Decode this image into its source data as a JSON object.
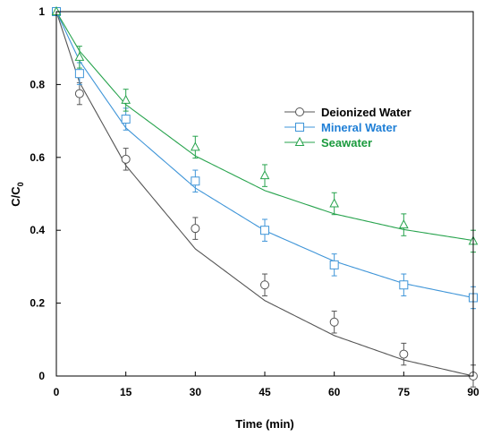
{
  "chart_data": {
    "type": "line",
    "xlabel": "Time (min)",
    "ylabel": "C/C",
    "ylabel_sub": "0",
    "xlim": [
      0,
      90
    ],
    "ylim": [
      0,
      1
    ],
    "x_ticks": [
      0,
      15,
      30,
      45,
      60,
      75,
      90
    ],
    "y_ticks": [
      0,
      0.2,
      0.4,
      0.6,
      0.8,
      1
    ],
    "y_tick_labels": [
      "0",
      "0.2",
      "0.4",
      "0.6",
      "0.8",
      "1"
    ],
    "legend_position": "center-right",
    "series": [
      {
        "name": "Deionized Water",
        "marker": "circle",
        "color": "#555555",
        "text_color": "#000000",
        "x": [
          0,
          5,
          15,
          30,
          45,
          60,
          75,
          90
        ],
        "y": [
          1.0,
          0.775,
          0.595,
          0.405,
          0.25,
          0.148,
          0.06,
          0.0
        ],
        "error": [
          0.0,
          0.03,
          0.03,
          0.03,
          0.03,
          0.03,
          0.03,
          0.03
        ],
        "fit": [
          1.0,
          0.806,
          0.578,
          0.349,
          0.207,
          0.111,
          0.044,
          0.0
        ]
      },
      {
        "name": "Mineral Water",
        "marker": "square",
        "color": "#3f95d8",
        "text_color": "#1f7fd6",
        "x": [
          0,
          5,
          15,
          30,
          45,
          60,
          75,
          90
        ],
        "y": [
          1.0,
          0.83,
          0.705,
          0.535,
          0.4,
          0.305,
          0.25,
          0.215
        ],
        "error": [
          0.0,
          0.03,
          0.03,
          0.03,
          0.03,
          0.03,
          0.03,
          0.03
        ],
        "fit": [
          1.0,
          0.865,
          0.681,
          0.516,
          0.399,
          0.315,
          0.254,
          0.215
        ]
      },
      {
        "name": "Seawater",
        "marker": "triangle",
        "color": "#27a34d",
        "text_color": "#1a9a3d",
        "x": [
          0,
          5,
          15,
          30,
          45,
          60,
          75,
          90
        ],
        "y": [
          1.0,
          0.875,
          0.757,
          0.628,
          0.55,
          0.473,
          0.415,
          0.37
        ],
        "error": [
          0.0,
          0.03,
          0.03,
          0.03,
          0.03,
          0.03,
          0.03,
          0.03
        ],
        "fit": [
          1.0,
          0.892,
          0.745,
          0.604,
          0.509,
          0.445,
          0.402,
          0.372
        ]
      }
    ]
  }
}
